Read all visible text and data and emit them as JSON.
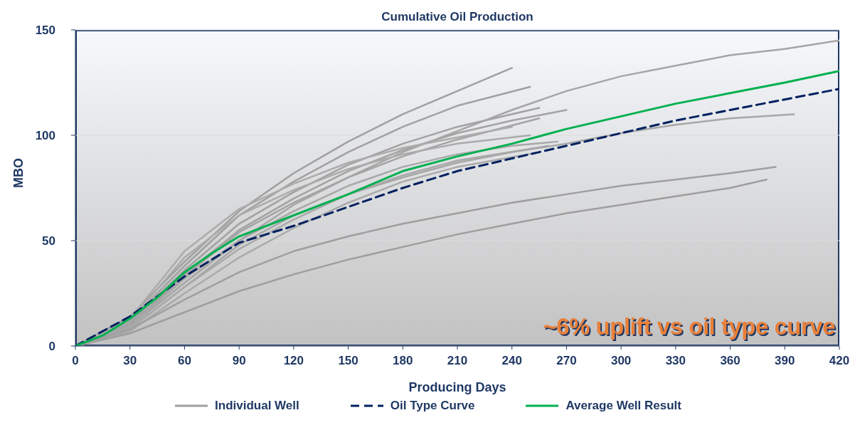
{
  "chart_data": {
    "type": "line",
    "title": "Cumulative Oil Production",
    "xlabel": "Producing Days",
    "ylabel": "MBO",
    "xlim": [
      0,
      420
    ],
    "xticks": [
      0,
      30,
      60,
      90,
      120,
      150,
      180,
      210,
      240,
      270,
      300,
      330,
      360,
      390,
      420
    ],
    "ylim": [
      0,
      150
    ],
    "yticks": [
      0,
      50,
      100,
      150
    ],
    "grid": "y",
    "legend": "bottom",
    "marker": "none",
    "annotations": [
      "~6% uplift vs oil type curve"
    ],
    "series": [
      {
        "name": "Individual Well",
        "color": "#a0a0a0",
        "x": [
          0,
          30,
          60,
          90,
          120,
          150,
          180,
          210,
          240
        ],
        "values": [
          0,
          14,
          40,
          64,
          82,
          97,
          110,
          121,
          132
        ]
      },
      {
        "color": "#a1a1a1",
        "x": [
          0,
          30,
          60,
          90,
          120,
          150,
          180,
          210,
          250
        ],
        "values": [
          0,
          12,
          38,
          62,
          78,
          92,
          104,
          114,
          123
        ]
      },
      {
        "color": "#a2a2a2",
        "x": [
          0,
          30,
          60,
          90,
          120,
          150,
          180,
          210,
          255
        ],
        "values": [
          0,
          11,
          36,
          58,
          73,
          86,
          96,
          104,
          113
        ]
      },
      {
        "color": "#a3a3a3",
        "x": [
          0,
          30,
          60,
          90,
          120,
          150,
          180,
          210,
          240,
          270
        ],
        "values": [
          0,
          10,
          34,
          55,
          70,
          83,
          93,
          101,
          107,
          112
        ]
      },
      {
        "color": "#a4a4a4",
        "x": [
          0,
          30,
          60,
          90,
          120,
          150,
          180,
          210,
          255
        ],
        "values": [
          0,
          10,
          33,
          54,
          68,
          80,
          90,
          98,
          108
        ]
      },
      {
        "color": "#a5a5a5",
        "x": [
          0,
          30,
          60,
          90,
          120,
          150,
          180,
          210,
          240,
          270,
          300,
          330,
          360,
          390,
          420
        ],
        "values": [
          0,
          9,
          30,
          50,
          67,
          80,
          92,
          102,
          112,
          121,
          128,
          133,
          138,
          141,
          145
        ]
      },
      {
        "color": "#a7a7a7",
        "x": [
          0,
          30,
          60,
          90,
          120,
          150,
          180,
          210,
          240,
          270,
          300,
          330,
          360,
          395
        ],
        "values": [
          0,
          8,
          28,
          48,
          62,
          72,
          80,
          87,
          92,
          96,
          101,
          105,
          108,
          110
        ]
      },
      {
        "color": "#a8a8a8",
        "x": [
          0,
          30,
          60,
          90,
          120,
          150,
          180,
          210,
          240,
          265
        ],
        "values": [
          0,
          9,
          32,
          50,
          64,
          76,
          85,
          91,
          95,
          97
        ]
      },
      {
        "color": "#a9a9a9",
        "x": [
          0,
          30,
          60,
          90,
          120,
          150,
          180,
          210,
          260
        ],
        "values": [
          0,
          8,
          28,
          46,
          60,
          72,
          81,
          88,
          95
        ]
      },
      {
        "color": "#aaaaaa",
        "x": [
          0,
          30,
          60,
          90,
          120,
          150,
          180,
          210,
          255
        ],
        "values": [
          0,
          7,
          25,
          42,
          56,
          68,
          78,
          85,
          92
        ]
      },
      {
        "color": "#9f9f9f",
        "x": [
          0,
          30,
          60,
          90,
          120,
          150,
          180,
          210,
          240,
          270,
          300,
          330,
          360,
          385
        ],
        "values": [
          0,
          8,
          22,
          35,
          45,
          52,
          58,
          63,
          68,
          72,
          76,
          79,
          82,
          85
        ]
      },
      {
        "color": "#9e9e9e",
        "x": [
          0,
          30,
          60,
          90,
          120,
          150,
          180,
          210,
          240,
          270,
          300,
          330,
          360,
          380
        ],
        "values": [
          0,
          6,
          16,
          26,
          34,
          41,
          47,
          53,
          58,
          63,
          67,
          71,
          75,
          79
        ]
      },
      {
        "color": "#ababab",
        "x": [
          0,
          30,
          60,
          90,
          120,
          150,
          180,
          210,
          250
        ],
        "values": [
          0,
          12,
          42,
          62,
          74,
          84,
          91,
          96,
          100
        ]
      },
      {
        "color": "#acacac",
        "x": [
          0,
          30,
          60,
          90,
          120,
          150,
          180,
          210,
          240
        ],
        "values": [
          0,
          13,
          45,
          65,
          77,
          87,
          94,
          99,
          104
        ]
      },
      {
        "name": "Oil Type Curve",
        "color": "#002060",
        "line_style": "dashed",
        "x": [
          0,
          30,
          60,
          90,
          120,
          150,
          180,
          210,
          240,
          270,
          300,
          330,
          360,
          390,
          420
        ],
        "values": [
          0,
          14,
          33,
          49,
          57,
          66,
          75,
          83,
          89,
          95,
          101,
          107,
          112,
          117,
          122
        ]
      },
      {
        "name": "Average Well Result",
        "color": "#00b050",
        "x": [
          0,
          15,
          30,
          45,
          60,
          75,
          90,
          120,
          150,
          180,
          210,
          240,
          270,
          300,
          330,
          360,
          390,
          420
        ],
        "values": [
          0,
          5,
          13,
          23,
          35,
          44,
          52,
          62,
          72,
          83,
          90,
          96,
          103,
          109,
          115,
          120,
          125,
          130.5
        ]
      }
    ]
  }
}
